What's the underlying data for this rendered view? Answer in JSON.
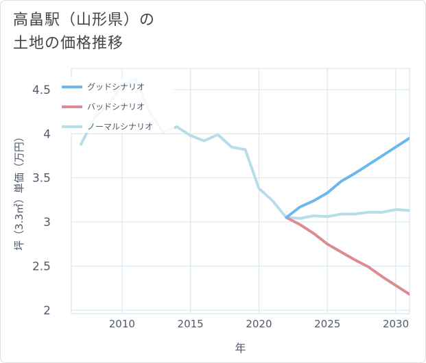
{
  "page_title": {
    "line1": "高畠駅（山形県）の",
    "line2": "土地の価格推移"
  },
  "chart_data": {
    "type": "line",
    "title": "高畠駅（山形県）の土地の価格推移",
    "xlabel": "年",
    "ylabel": "坪（3.3㎡）単価（万円）",
    "xlim": [
      2006.3,
      2031
    ],
    "ylim": [
      1.96,
      4.74
    ],
    "x_ticks": [
      2010,
      2015,
      2020,
      2025,
      2030
    ],
    "y_ticks": [
      2,
      2.5,
      3,
      3.5,
      4,
      4.5
    ],
    "y_tick_labels": [
      "2",
      "2.5",
      "3",
      "3.5",
      "4",
      "4.5"
    ],
    "grid": true,
    "legend_position": "top-left",
    "series": [
      {
        "name": "グッドシナリオ",
        "color": "#6cb8ec",
        "x": [
          2022,
          2023,
          2024,
          2025,
          2026,
          2027,
          2028,
          2029,
          2030,
          2031
        ],
        "y": [
          3.05,
          3.17,
          3.24,
          3.33,
          3.46,
          3.55,
          3.65,
          3.75,
          3.85,
          3.95
        ]
      },
      {
        "name": "バッドシナリオ",
        "color": "#df8a92",
        "x": [
          2022,
          2023,
          2024,
          2025,
          2026,
          2027,
          2028,
          2029,
          2030,
          2031
        ],
        "y": [
          3.05,
          2.97,
          2.87,
          2.75,
          2.66,
          2.57,
          2.49,
          2.38,
          2.28,
          2.18
        ]
      },
      {
        "name": "ノーマルシナリオ",
        "color": "#b7dcea",
        "x": [
          2007,
          2008,
          2009,
          2010,
          2011,
          2012,
          2013,
          2014,
          2015,
          2016,
          2017,
          2018,
          2019,
          2020,
          2021,
          2022,
          2023,
          2024,
          2025,
          2026,
          2027,
          2028,
          2029,
          2030,
          2031
        ],
        "y": [
          3.88,
          4.18,
          4.33,
          4.55,
          4.62,
          4.25,
          4.02,
          4.08,
          3.98,
          3.92,
          3.99,
          3.85,
          3.82,
          3.38,
          3.24,
          3.05,
          3.04,
          3.07,
          3.06,
          3.09,
          3.09,
          3.11,
          3.11,
          3.14,
          3.13
        ]
      }
    ]
  }
}
